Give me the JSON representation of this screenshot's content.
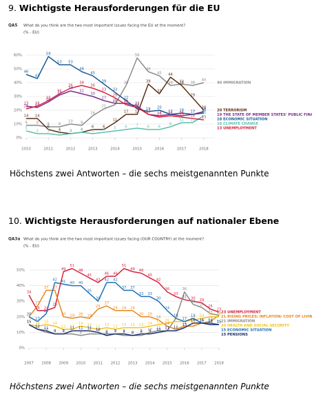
{
  "chart_data": [
    {
      "type": "line",
      "heading_number": "9.",
      "title": "Wichtigste Herausforderungen für die EU",
      "question_code": "QA5",
      "question": "What do you think are the two most important issues facing the EU at the moment?",
      "subtitle": "(% - EU)",
      "caption": "Höchstens zwei Antworten – die sechs meistgenannten Punkte",
      "x": [
        2010,
        2010.5,
        2011,
        2011.5,
        2012,
        2012.5,
        2013,
        2013.5,
        2014,
        2014.5,
        2015,
        2015.5,
        2016,
        2016.5,
        2017,
        2017.5,
        2018
      ],
      "xlim": [
        2010,
        2018.5
      ],
      "xticks": [
        2010,
        2011,
        2012,
        2013,
        2014,
        2015,
        2016,
        2017,
        2018
      ],
      "ylim": [
        0,
        60
      ],
      "yticks": [
        {
          "value": 0,
          "label": "0%"
        },
        {
          "value": 10,
          "label": "10%"
        },
        {
          "value": 20,
          "label": "20%"
        },
        {
          "value": 30,
          "label": "30%"
        },
        {
          "value": 40,
          "label": "40%"
        },
        {
          "value": 50,
          "label": "50%"
        },
        {
          "value": 60,
          "label": "60%"
        }
      ],
      "grid": true,
      "series": [
        {
          "name": "IMMIGRATION",
          "color": "#8c8c8c",
          "values": [
            9,
            9,
            8,
            8,
            10,
            9,
            16,
            21,
            24,
            38,
            58,
            48,
            45,
            38,
            39,
            38,
            40
          ]
        },
        {
          "name": "TERRORISM",
          "color": "#5a2d12",
          "values": [
            14,
            14,
            6,
            4,
            3,
            4,
            6,
            6,
            11,
            17,
            17,
            39,
            32,
            44,
            38,
            29,
            20
          ]
        },
        {
          "name": "THE STATE OF MEMBER STATES' PUBLIC FINANCES",
          "color": "#7b2d8e",
          "values": [
            23,
            22,
            26,
            31,
            34,
            32,
            30,
            27,
            25,
            25,
            23,
            17,
            16,
            17,
            16,
            17,
            19
          ]
        },
        {
          "name": "ECONOMIC SITUATION",
          "color": "#1a5c96",
          "values": [
            46,
            43,
            59,
            53,
            53,
            48,
            45,
            39,
            33,
            27,
            21,
            19,
            20,
            17,
            18,
            17,
            18
          ]
        },
        {
          "name": "CLIMATE CHANGE",
          "color": "#5bbfae",
          "values": [
            5,
            3,
            3,
            2,
            3,
            4,
            3,
            4,
            5,
            6,
            7,
            6,
            6,
            8,
            11,
            11,
            16
          ]
        },
        {
          "name": "UNEMPLOYMENT",
          "color": "#d4213d",
          "values": [
            21,
            23,
            27,
            32,
            36,
            38,
            36,
            33,
            29,
            24,
            22,
            17,
            15,
            16,
            15,
            14,
            13
          ]
        }
      ]
    },
    {
      "type": "line",
      "heading_number": "10.",
      "title": "Wichtigste Herausforderungen auf nationaler Ebene",
      "question_code": "QA3a",
      "question": "What do you think are the two most important issues facing (OUR COUNTRY) at the moment?",
      "subtitle": "(% - EU)",
      "caption": "Höchstens zwei Antworten – die sechs meistgenannten Punkte",
      "x": [
        2007,
        2007.5,
        2008,
        2008.5,
        2009,
        2009.5,
        2010,
        2010.5,
        2011,
        2011.5,
        2012,
        2012.5,
        2013,
        2013.5,
        2014,
        2014.5,
        2015,
        2015.5,
        2016,
        2016.5,
        2017,
        2017.5,
        2018
      ],
      "xlim": [
        2007,
        2018
      ],
      "xticks": [
        2007,
        2008,
        2009,
        2010,
        2011,
        2012,
        2013,
        2014,
        2015,
        2016,
        2017,
        2018
      ],
      "ylim": [
        0,
        50
      ],
      "yticks": [
        {
          "value": 0,
          "label": "0%"
        },
        {
          "value": 10,
          "label": "10%"
        },
        {
          "value": 20,
          "label": "20%"
        },
        {
          "value": 30,
          "label": "30%"
        },
        {
          "value": 40,
          "label": "40%"
        },
        {
          "value": 50,
          "label": "50%"
        }
      ],
      "grid": true,
      "series": [
        {
          "name": "UNEMPLOYMENT",
          "color": "#d4213d",
          "values": [
            34,
            24,
            24,
            26,
            49,
            51,
            48,
            45,
            42,
            46,
            46,
            51,
            49,
            48,
            45,
            42,
            36,
            33,
            31,
            30,
            29,
            25,
            23
          ]
        },
        {
          "name": "RISING PRICES/ INFLATION/ COST OF LIVING",
          "color": "#e8861c",
          "values": [
            20,
            27,
            37,
            37,
            20,
            19,
            20,
            19,
            25,
            27,
            24,
            24,
            24,
            20,
            20,
            18,
            14,
            12,
            14,
            14,
            16,
            17,
            21
          ]
        },
        {
          "name": "IMMIGRATION",
          "color": "#8a8a8a",
          "values": [
            15,
            12,
            10,
            9,
            9,
            9,
            8,
            9,
            9,
            9,
            9,
            8,
            8,
            8,
            10,
            11,
            11,
            19,
            36,
            28,
            26,
            22,
            21
          ]
        },
        {
          "name": "HEALTH AND SOCIAL SECURITY",
          "color": "#f2c21c",
          "values": [
            15,
            14,
            15,
            14,
            12,
            12,
            14,
            13,
            12,
            13,
            12,
            13,
            13,
            13,
            14,
            15,
            16,
            17,
            17,
            18,
            19,
            20,
            20
          ]
        },
        {
          "name": "ECONOMIC SITUATION",
          "color": "#1f6fb5",
          "values": [
            20,
            17,
            22,
            42,
            41,
            40,
            40,
            35,
            30,
            42,
            42,
            37,
            37,
            33,
            33,
            30,
            24,
            19,
            17,
            19,
            16,
            16,
            15
          ]
        },
        {
          "name": "PENSIONS",
          "color": "#1b2f6e",
          "values": [
            15,
            12,
            11,
            9,
            9,
            11,
            11,
            11,
            10,
            8,
            9,
            9,
            8,
            9,
            9,
            10,
            11,
            11,
            13,
            16,
            16,
            15,
            15
          ]
        }
      ]
    }
  ]
}
